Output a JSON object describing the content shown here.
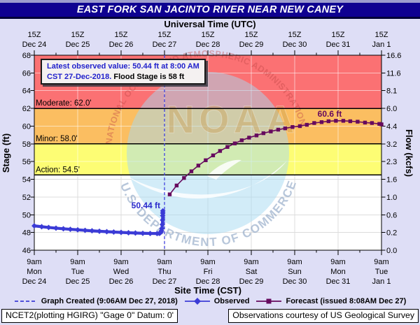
{
  "title_bar": {
    "title": "EAST FORK SAN JACINTO RIVER NEAR NEW CANEY"
  },
  "axes": {
    "top_title": "Universal Time (UTC)",
    "bottom_title": "Site Time (CST)",
    "left_title": "Stage (ft)",
    "right_title": "Flow (kcfs)",
    "top_ticks": [
      {
        "line1": "15Z",
        "line2": "Dec 24"
      },
      {
        "line1": "15Z",
        "line2": "Dec 25"
      },
      {
        "line1": "15Z",
        "line2": "Dec 26"
      },
      {
        "line1": "15Z",
        "line2": "Dec 27"
      },
      {
        "line1": "15Z",
        "line2": "Dec 28"
      },
      {
        "line1": "15Z",
        "line2": "Dec 29"
      },
      {
        "line1": "15Z",
        "line2": "Dec 30"
      },
      {
        "line1": "15Z",
        "line2": "Dec 31"
      },
      {
        "line1": "15Z",
        "line2": "Jan 1"
      }
    ],
    "bottom_ticks": [
      {
        "line1": "9am",
        "line2": "Mon",
        "line3": "Dec 24"
      },
      {
        "line1": "9am",
        "line2": "Tue",
        "line3": "Dec 25"
      },
      {
        "line1": "9am",
        "line2": "Wed",
        "line3": "Dec 26"
      },
      {
        "line1": "9am",
        "line2": "Thu",
        "line3": "Dec 27"
      },
      {
        "line1": "9am",
        "line2": "Fri",
        "line3": "Dec 28"
      },
      {
        "line1": "9am",
        "line2": "Sat",
        "line3": "Dec 29"
      },
      {
        "line1": "9am",
        "line2": "Sun",
        "line3": "Dec 30"
      },
      {
        "line1": "9am",
        "line2": "Mon",
        "line3": "Dec 31"
      },
      {
        "line1": "9am",
        "line2": "Tue",
        "line3": "Jan 1"
      }
    ],
    "left_ticks": [
      "68",
      "66",
      "64",
      "62",
      "60",
      "58",
      "56",
      "54",
      "52",
      "50",
      "48",
      "46"
    ],
    "right_ticks": [
      "16.6",
      "11.6",
      "8.1",
      "6.0",
      "4.4",
      "3.2",
      "2.3",
      "1.6",
      "1.0",
      "0.6",
      "0.2",
      "0.0"
    ]
  },
  "annotation": {
    "line1": "Latest observed value: 50.44 ft at 8:00 AM",
    "line2_blue": "CST 27-Dec-2018.",
    "line2_black": " Flood Stage is 58 ft"
  },
  "thresholds": [
    {
      "name": "Moderate",
      "label": "Moderate: 62.0'",
      "stage": 62.0,
      "color": "#FB7173"
    },
    {
      "name": "Minor",
      "label": "Minor: 58.0'",
      "stage": 58.0,
      "color": "#FBBE61"
    },
    {
      "name": "Action",
      "label": "Action: 54.5'",
      "stage": 54.5,
      "color": "#FDFD74"
    }
  ],
  "point_labels": {
    "observed_latest": "50.44 ft",
    "forecast_crest": "60.6 ft"
  },
  "legend": [
    {
      "label": "Graph Created (9:06AM Dec 27, 2018)",
      "marker": "dashed-line",
      "color": "#3B3BD6"
    },
    {
      "label": "Observed",
      "marker": "line-diamond",
      "color": "#3B3BD6"
    },
    {
      "label": "Forecast (issued 8:08AM Dec 27)",
      "marker": "line-square",
      "color": "#660A5E"
    }
  ],
  "footer": {
    "left": "NCET2(plotting HGIRG) \"Gage 0\" Datum: 0'",
    "right": "Observations courtesy of US Geological Survey"
  },
  "watermark": {
    "noaa": "NOAA",
    "text_top": "NATIONAL OCEANIC AND ATMOSPHERIC ADMINISTRATION",
    "text_bottom": "U.S. DEPARTMENT OF COMMERCE"
  },
  "colors": {
    "page_background": "#DEDEF6",
    "title_bar": "#0F0191",
    "moderate_band": "#FB7173",
    "minor_band": "#FBBE61",
    "action_band": "#FDFD74",
    "observed_line": "#3B3BD6",
    "forecast_line": "#660A5E",
    "graph_created_line": "#4343DF"
  },
  "chart_data": {
    "type": "line",
    "title": "EAST FORK SAN JACINTO RIVER NEAR NEW CANEY",
    "xlabel_top": "Universal Time (UTC)",
    "xlabel_bottom": "Site Time (CST)",
    "ylabel_left": "Stage (ft)",
    "ylabel_right": "Flow (kcfs)",
    "ylim": [
      46,
      68
    ],
    "x_unit": "days since Dec 24 9:00 AM CST",
    "xlim": [
      0,
      8
    ],
    "x_day_labels": [
      "Dec 24",
      "Dec 25",
      "Dec 26",
      "Dec 27",
      "Dec 28",
      "Dec 29",
      "Dec 30",
      "Dec 31",
      "Jan 1"
    ],
    "grid": true,
    "flood_stage_ft": 58,
    "flood_categories": {
      "action": 54.5,
      "minor": 58.0,
      "moderate": 62.0
    },
    "stage_to_flow_ticks": [
      [
        68,
        16.6
      ],
      [
        66,
        11.6
      ],
      [
        64,
        8.1
      ],
      [
        62,
        6.0
      ],
      [
        60,
        4.4
      ],
      [
        58,
        3.2
      ],
      [
        56,
        2.3
      ],
      [
        54,
        1.6
      ],
      [
        52,
        1.0
      ],
      [
        50,
        0.6
      ],
      [
        48,
        0.2
      ],
      [
        46,
        0.0
      ]
    ],
    "graph_created": "9:06AM Dec 27, 2018",
    "graph_created_x": 3.0,
    "latest_observed": {
      "stage_ft": 50.44,
      "time": "8:00 AM CST 27-Dec-2018"
    },
    "forecast_crest_ft": 60.6,
    "forecast_issued": "8:08AM Dec 27",
    "series": [
      {
        "name": "Observed",
        "color": "#3B3BD6",
        "marker": "diamond",
        "points": [
          [
            0,
            48.75
          ],
          [
            0.17,
            48.65
          ],
          [
            0.33,
            48.57
          ],
          [
            0.5,
            48.49
          ],
          [
            0.67,
            48.42
          ],
          [
            0.83,
            48.36
          ],
          [
            1,
            48.3
          ],
          [
            1.17,
            48.24
          ],
          [
            1.33,
            48.19
          ],
          [
            1.5,
            48.14
          ],
          [
            1.67,
            48.09
          ],
          [
            1.83,
            48.05
          ],
          [
            2,
            48.01
          ],
          [
            2.17,
            47.97
          ],
          [
            2.33,
            47.94
          ],
          [
            2.5,
            47.91
          ],
          [
            2.67,
            47.89
          ],
          [
            2.83,
            47.88
          ],
          [
            2.88,
            47.9
          ],
          [
            2.9,
            47.95
          ],
          [
            2.92,
            48.05
          ],
          [
            2.93,
            48.2
          ],
          [
            2.94,
            48.45
          ],
          [
            2.95,
            48.9
          ],
          [
            2.955,
            49.4
          ],
          [
            2.958,
            49.9
          ],
          [
            2.96,
            50.2
          ],
          [
            2.962,
            50.44
          ]
        ]
      },
      {
        "name": "Forecast (issued 8:08AM Dec 27)",
        "color": "#660A5E",
        "marker": "square",
        "points": [
          [
            3.12,
            52.3
          ],
          [
            3.28,
            53.3
          ],
          [
            3.45,
            54.15
          ],
          [
            3.62,
            54.9
          ],
          [
            3.78,
            55.55
          ],
          [
            3.95,
            56.15
          ],
          [
            4.12,
            56.7
          ],
          [
            4.28,
            57.2
          ],
          [
            4.45,
            57.65
          ],
          [
            4.62,
            58.05
          ],
          [
            4.78,
            58.4
          ],
          [
            4.95,
            58.7
          ],
          [
            5.12,
            58.95
          ],
          [
            5.28,
            59.2
          ],
          [
            5.45,
            59.4
          ],
          [
            5.62,
            59.6
          ],
          [
            5.78,
            59.75
          ],
          [
            5.95,
            59.9
          ],
          [
            6.12,
            60.0
          ],
          [
            6.28,
            60.15
          ],
          [
            6.45,
            60.35
          ],
          [
            6.62,
            60.45
          ],
          [
            6.78,
            60.55
          ],
          [
            6.95,
            60.6
          ],
          [
            7.12,
            60.6
          ],
          [
            7.28,
            60.55
          ],
          [
            7.45,
            60.5
          ],
          [
            7.62,
            60.4
          ],
          [
            7.78,
            60.35
          ],
          [
            7.95,
            60.25
          ],
          [
            8,
            60.2
          ]
        ]
      }
    ]
  }
}
